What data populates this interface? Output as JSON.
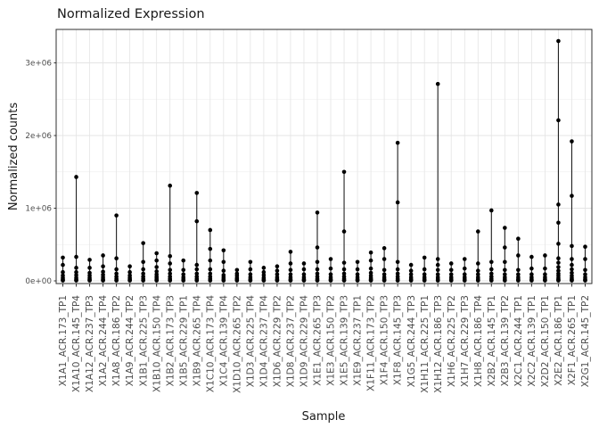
{
  "chart_data": {
    "type": "scatter",
    "title": "Normalized Expression",
    "xlabel": "Sample",
    "ylabel": "Normalized counts",
    "ylim": [
      0,
      3460000
    ],
    "grid": true,
    "legend": "none",
    "yticks": {
      "values": [
        0,
        1000000,
        2000000,
        3000000
      ],
      "labels": [
        "0e+00",
        "1e+06",
        "2e+06",
        "3e+06"
      ]
    },
    "y_minor": [
      500000,
      1500000,
      2500000
    ],
    "colors": {
      "point": "#000000",
      "stem": "#1f1f1f",
      "grid_major": "#e4e4e4",
      "grid_minor": "#f1f1f1",
      "panel_border": "#2f2f2f",
      "tick_mark": "#333333",
      "tick_text": "#4d4d4d",
      "title_text": "#1a1a1a",
      "panel_bg": "#ffffff"
    },
    "samples": [
      {
        "label": "X1A1_ACR.173_TP1",
        "values": [
          5000,
          12000,
          25000,
          45000,
          75000,
          120000,
          220000,
          320000
        ]
      },
      {
        "label": "X1A10_ACR.145_TP4",
        "values": [
          5000,
          12000,
          25000,
          45000,
          80000,
          120000,
          180000,
          330000,
          1430000
        ]
      },
      {
        "label": "X1A12_ACR.237_TP3",
        "values": [
          5000,
          12000,
          25000,
          45000,
          75000,
          110000,
          180000,
          290000
        ]
      },
      {
        "label": "X1A2_ACR.244_TP4",
        "values": [
          5000,
          12000,
          25000,
          50000,
          85000,
          125000,
          200000,
          350000
        ]
      },
      {
        "label": "X1A8_ACR.186_TP2",
        "values": [
          5000,
          12000,
          30000,
          60000,
          100000,
          160000,
          310000,
          900000
        ]
      },
      {
        "label": "X1A9_ACR.244_TP2",
        "values": [
          5000,
          12000,
          25000,
          45000,
          75000,
          120000,
          200000
        ]
      },
      {
        "label": "X1B1_ACR.225_TP3",
        "values": [
          5000,
          12000,
          30000,
          60000,
          100000,
          160000,
          260000,
          520000
        ]
      },
      {
        "label": "X1B10_ACR.150_TP4",
        "values": [
          5000,
          12000,
          22000,
          40000,
          62000,
          90000,
          130000,
          190000,
          280000,
          380000
        ]
      },
      {
        "label": "X1B2_ACR.173_TP3",
        "values": [
          5000,
          12000,
          30000,
          60000,
          100000,
          150000,
          240000,
          340000,
          1310000
        ]
      },
      {
        "label": "X1B5_ACR.229_TP1",
        "values": [
          5000,
          12000,
          25000,
          50000,
          90000,
          150000,
          280000
        ]
      },
      {
        "label": "X1B9_ACR.265_TP4",
        "values": [
          5000,
          12000,
          30000,
          60000,
          100000,
          160000,
          220000,
          820000,
          1210000
        ]
      },
      {
        "label": "X1C10_ACR.173_TP4",
        "values": [
          5000,
          12000,
          30000,
          60000,
          100000,
          160000,
          280000,
          440000,
          700000
        ]
      },
      {
        "label": "X1C4_ACR.139_TP4",
        "values": [
          5000,
          12000,
          25000,
          50000,
          80000,
          140000,
          260000,
          420000
        ]
      },
      {
        "label": "X1D10_ACR.265_TP2",
        "values": [
          5000,
          12000,
          25000,
          40000,
          70000,
          100000,
          150000
        ]
      },
      {
        "label": "X1D3_ACR.225_TP4",
        "values": [
          5000,
          12000,
          25000,
          50000,
          90000,
          160000,
          260000
        ]
      },
      {
        "label": "X1D4_ACR.237_TP4",
        "values": [
          5000,
          12000,
          25000,
          45000,
          80000,
          120000,
          180000
        ]
      },
      {
        "label": "X1D6_ACR.229_TP2",
        "values": [
          5000,
          12000,
          25000,
          50000,
          90000,
          140000,
          200000
        ]
      },
      {
        "label": "X1D8_ACR.237_TP2",
        "values": [
          5000,
          12000,
          25000,
          50000,
          90000,
          150000,
          240000,
          400000
        ]
      },
      {
        "label": "X1D9_ACR.229_TP4",
        "values": [
          5000,
          12000,
          25000,
          50000,
          90000,
          160000,
          240000
        ]
      },
      {
        "label": "X1E1_ACR.265_TP3",
        "values": [
          5000,
          12000,
          30000,
          60000,
          100000,
          160000,
          260000,
          460000,
          940000
        ]
      },
      {
        "label": "X1E3_ACR.150_TP2",
        "values": [
          5000,
          12000,
          25000,
          50000,
          90000,
          170000,
          300000
        ]
      },
      {
        "label": "X1E5_ACR.139_TP3",
        "values": [
          5000,
          12000,
          30000,
          60000,
          100000,
          160000,
          250000,
          680000,
          1500000
        ]
      },
      {
        "label": "X1E9_ACR.237_TP1",
        "values": [
          5000,
          12000,
          25000,
          50000,
          90000,
          160000,
          260000
        ]
      },
      {
        "label": "X1F11_ACR.173_TP2",
        "values": [
          5000,
          12000,
          22000,
          40000,
          70000,
          110000,
          170000,
          280000,
          390000
        ]
      },
      {
        "label": "X1F4_ACR.150_TP3",
        "values": [
          5000,
          12000,
          25000,
          50000,
          90000,
          150000,
          300000,
          450000
        ]
      },
      {
        "label": "X1F8_ACR.145_TP3",
        "values": [
          5000,
          12000,
          30000,
          60000,
          100000,
          160000,
          260000,
          1080000,
          1900000
        ]
      },
      {
        "label": "X1G5_ACR.244_TP3",
        "values": [
          5000,
          12000,
          25000,
          50000,
          90000,
          140000,
          220000
        ]
      },
      {
        "label": "X1H11_ACR.225_TP1",
        "values": [
          5000,
          12000,
          25000,
          50000,
          90000,
          160000,
          320000
        ]
      },
      {
        "label": "X1H12_ACR.186_TP3",
        "values": [
          5000,
          12000,
          25000,
          50000,
          90000,
          150000,
          220000,
          300000,
          2710000
        ]
      },
      {
        "label": "X1H6_ACR.225_TP2",
        "values": [
          5000,
          12000,
          25000,
          50000,
          90000,
          150000,
          240000
        ]
      },
      {
        "label": "X1H7_ACR.229_TP3",
        "values": [
          5000,
          12000,
          25000,
          50000,
          90000,
          170000,
          300000
        ]
      },
      {
        "label": "X1H8_ACR.186_TP4",
        "values": [
          5000,
          12000,
          25000,
          50000,
          90000,
          140000,
          240000,
          680000
        ]
      },
      {
        "label": "X2B2_ACR.145_TP1",
        "values": [
          5000,
          12000,
          30000,
          60000,
          100000,
          160000,
          260000,
          970000
        ]
      },
      {
        "label": "X2B3_ACR.139_TP2",
        "values": [
          5000,
          12000,
          25000,
          50000,
          90000,
          150000,
          260000,
          460000,
          730000
        ]
      },
      {
        "label": "X2C1_ACR.244_TP1",
        "values": [
          5000,
          12000,
          25000,
          50000,
          90000,
          150000,
          350000,
          580000
        ]
      },
      {
        "label": "X2C2_ACR.139_TP1",
        "values": [
          5000,
          12000,
          25000,
          50000,
          90000,
          170000,
          330000
        ]
      },
      {
        "label": "X2D2_ACR.150_TP1",
        "values": [
          5000,
          12000,
          25000,
          50000,
          90000,
          170000,
          350000
        ]
      },
      {
        "label": "X2E2_ACR.186_TP1",
        "values": [
          5000,
          12000,
          22000,
          40000,
          70000,
          100000,
          140000,
          190000,
          250000,
          310000,
          510000,
          800000,
          1050000,
          2210000,
          3300000
        ]
      },
      {
        "label": "X2F1_ACR.265_TP1",
        "values": [
          5000,
          12000,
          22000,
          40000,
          70000,
          110000,
          160000,
          220000,
          300000,
          480000,
          1170000,
          1920000
        ]
      },
      {
        "label": "X2G1_ACR.145_TP2",
        "values": [
          5000,
          12000,
          25000,
          50000,
          90000,
          150000,
          300000,
          470000
        ]
      }
    ]
  }
}
